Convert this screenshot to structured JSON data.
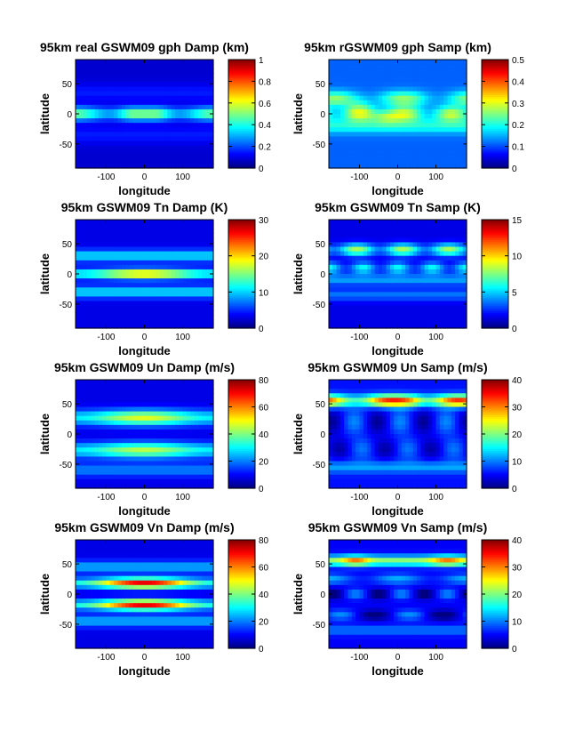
{
  "chart_data": [
    {
      "type": "heatmap",
      "pattern": "gph_d",
      "title": "95km real GSWM09 gph Damp (km)",
      "xlabel": "longitude",
      "ylabel": "latitude",
      "xlim": [
        -180,
        180
      ],
      "ylim": [
        -90,
        90
      ],
      "xticks": [
        -100,
        0,
        100
      ],
      "yticks": [
        50,
        0,
        -50
      ],
      "colorbar": {
        "range": [
          0,
          1
        ],
        "ticks": [
          0,
          0.2,
          0.4,
          0.6,
          0.8,
          1
        ],
        "tick_labels": [
          "0",
          "0.2",
          "0.4",
          "0.6",
          "0.8",
          "1"
        ]
      }
    },
    {
      "type": "heatmap",
      "pattern": "gph_s",
      "title": "95km rGSWM09 gph Samp (km)",
      "xlabel": "longitude",
      "ylabel": "latitude",
      "xlim": [
        -180,
        180
      ],
      "ylim": [
        -90,
        90
      ],
      "xticks": [
        -100,
        0,
        100
      ],
      "yticks": [
        50,
        0,
        -50
      ],
      "colorbar": {
        "range": [
          0,
          0.5
        ],
        "ticks": [
          0,
          0.1,
          0.2,
          0.3,
          0.4,
          0.5
        ],
        "tick_labels": [
          "0",
          "0.1",
          "0.2",
          "0.3",
          "0.4",
          "0.5"
        ]
      }
    },
    {
      "type": "heatmap",
      "pattern": "tn_d",
      "title": "95km GSWM09 Tn Damp (K)",
      "xlabel": "longitude",
      "ylabel": "latitude",
      "xlim": [
        -180,
        180
      ],
      "ylim": [
        -90,
        90
      ],
      "xticks": [
        -100,
        0,
        100
      ],
      "yticks": [
        50,
        0,
        -50
      ],
      "colorbar": {
        "range": [
          0,
          30
        ],
        "ticks": [
          0,
          10,
          20,
          30
        ],
        "tick_labels": [
          "0",
          "10",
          "20",
          "30"
        ]
      }
    },
    {
      "type": "heatmap",
      "pattern": "tn_s",
      "title": "95km GSWM09 Tn Samp (K)",
      "xlabel": "longitude",
      "ylabel": "latitude",
      "xlim": [
        -180,
        180
      ],
      "ylim": [
        -90,
        90
      ],
      "xticks": [
        -100,
        0,
        100
      ],
      "yticks": [
        50,
        0,
        -50
      ],
      "colorbar": {
        "range": [
          0,
          15
        ],
        "ticks": [
          0,
          5,
          10,
          15
        ],
        "tick_labels": [
          "0",
          "5",
          "10",
          "15"
        ]
      }
    },
    {
      "type": "heatmap",
      "pattern": "un_d",
      "title": "95km GSWM09 Un Damp (m/s)",
      "xlabel": "longitude",
      "ylabel": "latitude",
      "xlim": [
        -180,
        180
      ],
      "ylim": [
        -90,
        90
      ],
      "xticks": [
        -100,
        0,
        100
      ],
      "yticks": [
        50,
        0,
        -50
      ],
      "colorbar": {
        "range": [
          0,
          80
        ],
        "ticks": [
          0,
          20,
          40,
          60,
          80
        ],
        "tick_labels": [
          "0",
          "20",
          "40",
          "60",
          "80"
        ]
      }
    },
    {
      "type": "heatmap",
      "pattern": "un_s",
      "title": "95km GSWM09 Un Samp (m/s)",
      "xlabel": "longitude",
      "ylabel": "latitude",
      "xlim": [
        -180,
        180
      ],
      "ylim": [
        -90,
        90
      ],
      "xticks": [
        -100,
        0,
        100
      ],
      "yticks": [
        50,
        0,
        -50
      ],
      "colorbar": {
        "range": [
          0,
          40
        ],
        "ticks": [
          0,
          10,
          20,
          30,
          40
        ],
        "tick_labels": [
          "0",
          "10",
          "20",
          "30",
          "40"
        ]
      }
    },
    {
      "type": "heatmap",
      "pattern": "vn_d",
      "title": "95km GSWM09 Vn Damp (m/s)",
      "xlabel": "longitude",
      "ylabel": "latitude",
      "xlim": [
        -180,
        180
      ],
      "ylim": [
        -90,
        90
      ],
      "xticks": [
        -100,
        0,
        100
      ],
      "yticks": [
        50,
        0,
        -50
      ],
      "colorbar": {
        "range": [
          0,
          80
        ],
        "ticks": [
          0,
          20,
          40,
          60,
          80
        ],
        "tick_labels": [
          "0",
          "20",
          "40",
          "60",
          "80"
        ]
      }
    },
    {
      "type": "heatmap",
      "pattern": "vn_s",
      "title": "95km GSWM09 Vn Samp (m/s)",
      "xlabel": "longitude",
      "ylabel": "latitude",
      "xlim": [
        -180,
        180
      ],
      "ylim": [
        -90,
        90
      ],
      "xticks": [
        -100,
        0,
        100
      ],
      "yticks": [
        50,
        0,
        -50
      ],
      "colorbar": {
        "range": [
          0,
          40
        ],
        "ticks": [
          0,
          10,
          20,
          30,
          40
        ],
        "tick_labels": [
          "0",
          "10",
          "20",
          "30",
          "40"
        ]
      }
    }
  ]
}
